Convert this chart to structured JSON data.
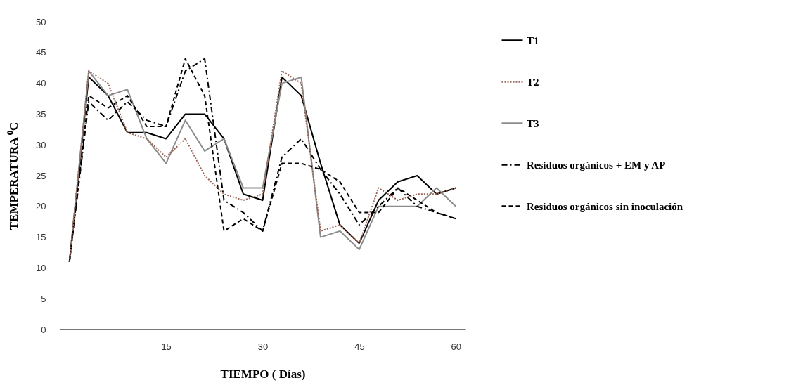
{
  "chart_data": {
    "type": "line",
    "xlabel": "TIEMPO ( Días)",
    "ylabel": "TEMPERATURA ⁰C",
    "x": [
      0,
      3,
      6,
      9,
      12,
      15,
      18,
      21,
      24,
      27,
      30,
      33,
      36,
      39,
      42,
      45,
      48,
      51,
      54,
      57,
      60
    ],
    "xlim": [
      -1.5,
      61.5
    ],
    "xticks": [
      15,
      30,
      45,
      60
    ],
    "ylim": [
      0,
      50
    ],
    "yticks": [
      0,
      5,
      10,
      15,
      20,
      25,
      30,
      35,
      40,
      45,
      50
    ],
    "legend": "right",
    "series": [
      {
        "name": "T1",
        "color": "#000000",
        "line_style": "solid",
        "values": [
          11,
          41,
          38,
          32,
          32,
          31,
          35,
          35,
          31,
          22,
          21,
          41,
          38,
          27,
          17,
          14,
          21,
          24,
          25,
          22,
          23
        ]
      },
      {
        "name": "T2",
        "color": "#9c6656",
        "line_style": "dotted",
        "values": [
          11,
          42,
          40,
          32,
          31,
          28,
          31,
          25,
          22,
          21,
          22,
          42,
          40,
          16,
          17,
          14,
          23,
          21,
          22,
          22,
          23
        ]
      },
      {
        "name": "T3",
        "color": "#8c8c8c",
        "line_style": "solid",
        "values": [
          11,
          42,
          38,
          39,
          31,
          27,
          34,
          29,
          31,
          23,
          23,
          40,
          41,
          15,
          16,
          13,
          20,
          20,
          20,
          23,
          20
        ]
      },
      {
        "name": "Residuos orgánicos + EM  y AP",
        "color": "#000000",
        "line_style": "dashdot",
        "values": [
          11,
          37,
          34,
          37,
          34,
          33,
          42,
          44,
          21,
          19,
          16,
          28,
          31,
          26,
          22,
          17,
          20,
          23,
          20,
          19,
          18
        ]
      },
      {
        "name": "Residuos orgánicos sin inoculación",
        "color": "#000000",
        "line_style": "dashed",
        "values": [
          11,
          38,
          36,
          38,
          33,
          33,
          44,
          38,
          16,
          18,
          16,
          27,
          27,
          26,
          24,
          19,
          19,
          23,
          21,
          19,
          18
        ]
      }
    ]
  }
}
